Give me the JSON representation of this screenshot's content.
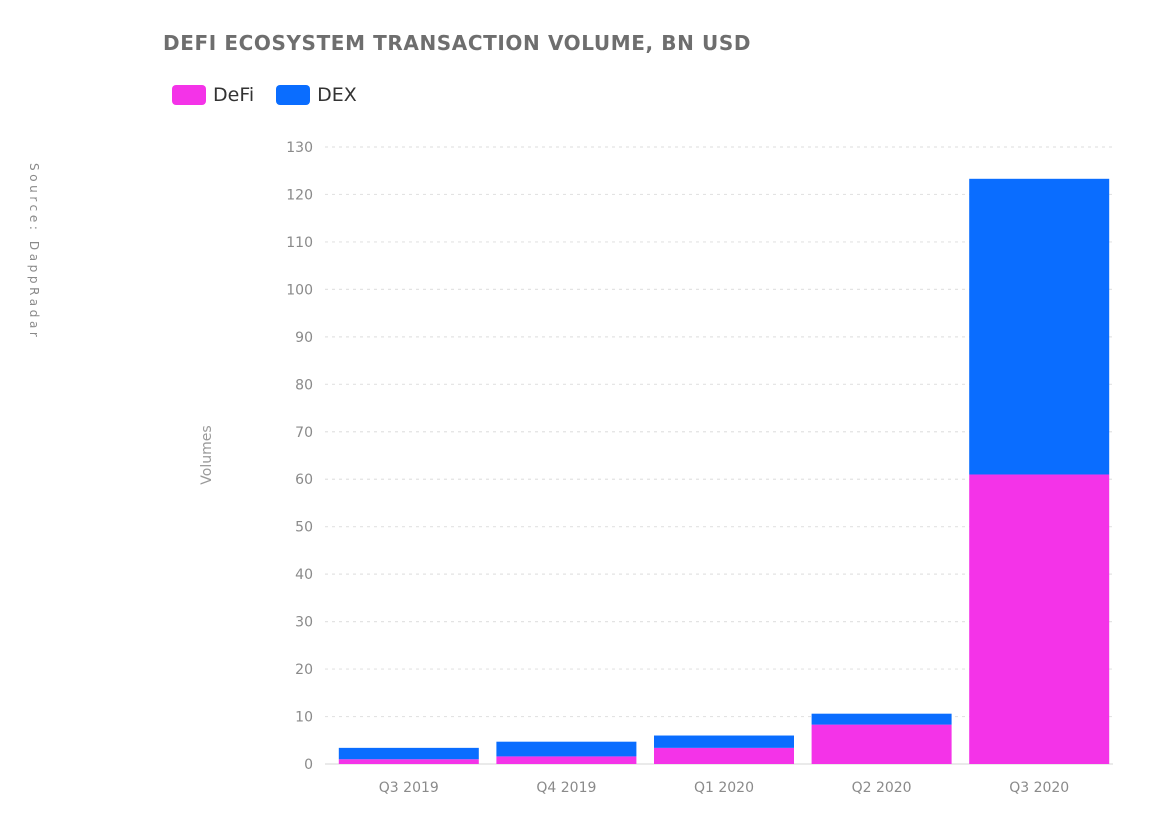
{
  "chart_data": {
    "type": "bar",
    "stacked": true,
    "title": "DEFI ECOSYSTEM TRANSACTION VOLUME, BN USD",
    "source": "Source: DappRadar",
    "ylabel": "Volumes",
    "xlabel": "",
    "categories": [
      "Q3 2019",
      "Q4 2019",
      "Q1 2020",
      "Q2 2020",
      "Q3 2020"
    ],
    "series": [
      {
        "name": "DeFi",
        "color": "#f433e8",
        "values": [
          1,
          1.6,
          3.4,
          8.3,
          61
        ]
      },
      {
        "name": "DEX",
        "color": "#0a6dff",
        "values": [
          2.4,
          3.1,
          2.6,
          2.3,
          62.3
        ]
      }
    ],
    "ylim": [
      0,
      130
    ],
    "yticks": [
      0,
      10,
      20,
      30,
      40,
      50,
      60,
      70,
      80,
      90,
      100,
      110,
      120,
      130
    ],
    "grid": true,
    "legend_position": "top-left"
  }
}
